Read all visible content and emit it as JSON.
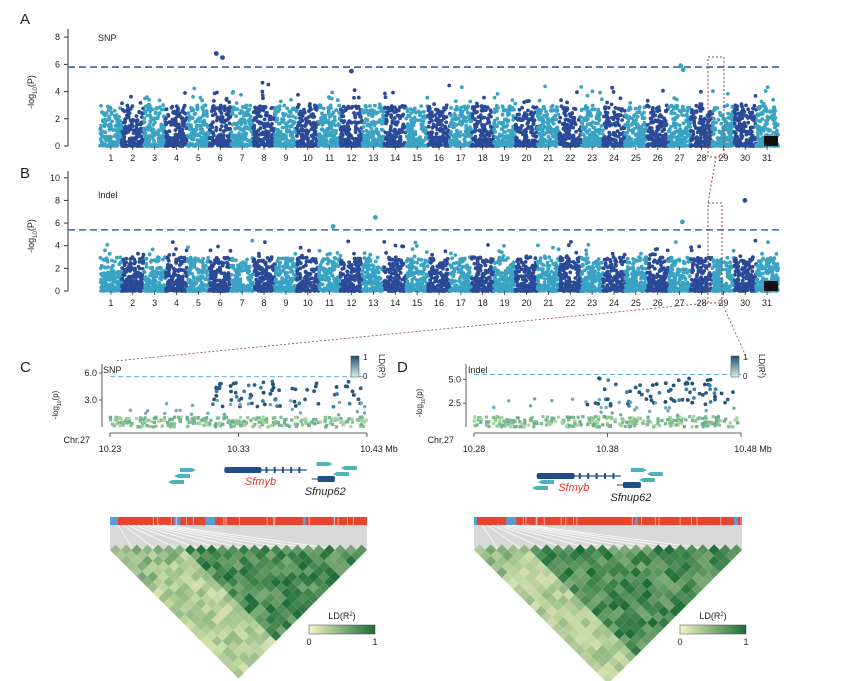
{
  "chart_data": [
    {
      "panel": "A",
      "type": "scatter",
      "subtype": "manhattan",
      "title": "SNP",
      "ylabel_main": "-log",
      "ylabel_sub": "10",
      "ylabel_tail": "(P)",
      "ylim": [
        0,
        8.6
      ],
      "yticks": [
        "0",
        "2",
        "4",
        "6",
        "8"
      ],
      "threshold": 5.8,
      "chromosomes": [
        "1",
        "2",
        "3",
        "4",
        "5",
        "6",
        "7",
        "8",
        "9",
        "10",
        "11",
        "12",
        "13",
        "14",
        "15",
        "16",
        "17",
        "18",
        "19",
        "20",
        "21",
        "22",
        "23",
        "24",
        "25",
        "26",
        "27",
        "28",
        "29",
        "30",
        "31"
      ],
      "peaks": [
        {
          "chromosome": "6",
          "value": 6.8
        },
        {
          "chromosome": "6",
          "value": 6.5
        },
        {
          "chromosome": "12",
          "value": 5.5
        },
        {
          "chromosome": "27",
          "value": 5.9
        },
        {
          "chromosome": "27",
          "value": 5.6
        }
      ]
    },
    {
      "panel": "B",
      "type": "scatter",
      "subtype": "manhattan",
      "title": "Indel",
      "ylabel_main": "-log",
      "ylabel_sub": "10",
      "ylabel_tail": "(P)",
      "ylim": [
        0,
        10.6
      ],
      "yticks": [
        "0",
        "2",
        "4",
        "6",
        "8",
        "10"
      ],
      "threshold": 5.4,
      "chromosomes": [
        "1",
        "2",
        "3",
        "4",
        "5",
        "6",
        "7",
        "8",
        "9",
        "10",
        "11",
        "12",
        "13",
        "14",
        "15",
        "16",
        "17",
        "18",
        "19",
        "20",
        "21",
        "22",
        "23",
        "24",
        "25",
        "26",
        "27",
        "28",
        "29",
        "30",
        "31"
      ],
      "peaks": [
        {
          "chromosome": "13",
          "value": 6.5
        },
        {
          "chromosome": "27",
          "value": 6.1
        },
        {
          "chromosome": "30",
          "value": 8.0
        },
        {
          "chromosome": "11",
          "value": 5.7
        }
      ]
    },
    {
      "panel": "C",
      "type": "scatter",
      "subtype": "regional-association",
      "title": "SNP",
      "ylabel_main": "-log",
      "ylabel_sub": "10",
      "ylabel_tail": "(p)",
      "ylim": [
        0,
        7.0
      ],
      "yticks": [
        "3.0",
        "6.0"
      ],
      "threshold": 5.6,
      "chromosome_label": "Chr.27",
      "xlim": [
        10.23,
        10.43
      ],
      "xticks": [
        "10.23",
        "10.33",
        "10.43 Mb"
      ],
      "ld_legend": {
        "label": "LD(R",
        "sup": "2",
        "tail": ")",
        "max": "1",
        "min": "0"
      },
      "genes": [
        {
          "name": "Sfmyb",
          "highlight": true,
          "start": 10.319,
          "end": 10.383
        },
        {
          "name": "Sfnup62",
          "highlight": false,
          "start": 10.39,
          "end": 10.405
        }
      ],
      "ld_heatmap_legend": {
        "label": "LD(R",
        "sup": "2",
        "tail": ")",
        "min": "0",
        "max": "1"
      }
    },
    {
      "panel": "D",
      "type": "scatter",
      "subtype": "regional-association",
      "title": "Indel",
      "ylabel_main": "-log",
      "ylabel_sub": "10",
      "ylabel_tail": "(p)",
      "ylim": [
        0,
        6.6
      ],
      "yticks": [
        "2.5",
        "5.0"
      ],
      "threshold": 5.5,
      "chromosome_label": "Chr.27",
      "xlim": [
        10.28,
        10.48
      ],
      "xticks": [
        "10.28",
        "10.38",
        "10.48 Mb"
      ],
      "ld_legend": {
        "label": "LD(R",
        "sup": "2",
        "tail": ")",
        "max": "1",
        "min": "0"
      },
      "genes": [
        {
          "name": "Sfmyb",
          "highlight": true,
          "start": 10.327,
          "end": 10.39
        },
        {
          "name": "Sfnup62",
          "highlight": false,
          "start": 10.39,
          "end": 10.405
        }
      ],
      "ld_heatmap_legend": {
        "label": "LD(R",
        "sup": "2",
        "tail": ")",
        "min": "0",
        "max": "1"
      }
    }
  ],
  "panel_labels": {
    "a": "A",
    "b": "B",
    "c": "C",
    "d": "D"
  },
  "colors": {
    "dark": "#2a4a97",
    "light": "#3aa3c4",
    "threshold": "#3a66a8",
    "highlight_gene": "#e8322a",
    "gene": "#1f4f8a",
    "ld_low": "#f3f6c4",
    "ld_high": "#1b6b34",
    "bar_red": "#e8432e",
    "bar_blue": "#5b9bd5"
  }
}
